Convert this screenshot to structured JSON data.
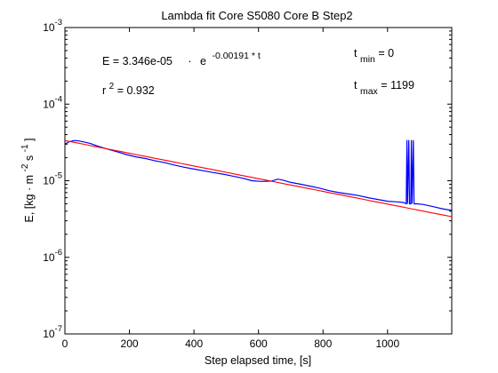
{
  "chart_data": {
    "type": "line",
    "title": "Lambda fit  Core S5080 Core B  Step2",
    "xlabel": "Step elapsed time, [s]",
    "ylabel": {
      "prefix": "E, [kg · m",
      "exp1": "-2",
      "middle": " s",
      "exp2": "-1",
      "suffix": "]"
    },
    "xlim": [
      0,
      1199
    ],
    "ylim": [
      1e-07,
      0.001
    ],
    "yscale": "log",
    "grid": false,
    "x_ticks": [
      0,
      200,
      400,
      600,
      800,
      1000
    ],
    "x_tick_labels": [
      "0",
      "200",
      "400",
      "600",
      "800",
      "1000"
    ],
    "y_ticks": [
      1e-07,
      1e-06,
      1e-05,
      0.0001,
      0.001
    ],
    "y_tick_labels": [
      {
        "base": "10",
        "exp": "-7"
      },
      {
        "base": "10",
        "exp": "-6"
      },
      {
        "base": "10",
        "exp": "-5"
      },
      {
        "base": "10",
        "exp": "-4"
      },
      {
        "base": "10",
        "exp": "-3"
      }
    ],
    "annotations": {
      "equation": {
        "lhs": "E = 3.346e-05",
        "dot": "·",
        "base": "e",
        "exp": "-0.00191 * t"
      },
      "r2": {
        "label": "r",
        "sup": "2",
        "value": " = 0.932"
      },
      "tmin": {
        "label": "t",
        "sub": "min",
        "value": " = 0"
      },
      "tmax": {
        "label": "t",
        "sub": "max",
        "value": " = 1199"
      }
    },
    "series": [
      {
        "color": "#0000ff",
        "points": [
          [
            0,
            3e-05
          ],
          [
            15,
            3.25e-05
          ],
          [
            30,
            3.35e-05
          ],
          [
            45,
            3.3e-05
          ],
          [
            60,
            3.2e-05
          ],
          [
            80,
            3.05e-05
          ],
          [
            100,
            2.85e-05
          ],
          [
            130,
            2.6e-05
          ],
          [
            160,
            2.4e-05
          ],
          [
            190,
            2.2e-05
          ],
          [
            220,
            2.05e-05
          ],
          [
            250,
            1.95e-05
          ],
          [
            280,
            1.82e-05
          ],
          [
            310,
            1.72e-05
          ],
          [
            340,
            1.6e-05
          ],
          [
            370,
            1.5e-05
          ],
          [
            400,
            1.42e-05
          ],
          [
            430,
            1.35e-05
          ],
          [
            460,
            1.28e-05
          ],
          [
            490,
            1.22e-05
          ],
          [
            520,
            1.15e-05
          ],
          [
            550,
            1.08e-05
          ],
          [
            580,
            1e-05
          ],
          [
            610,
            9.8e-06
          ],
          [
            640,
            9.9e-06
          ],
          [
            660,
            1.05e-05
          ],
          [
            675,
            1.02e-05
          ],
          [
            700,
            9.5e-06
          ],
          [
            730,
            9e-06
          ],
          [
            760,
            8.5e-06
          ],
          [
            790,
            8e-06
          ],
          [
            820,
            7.4e-06
          ],
          [
            850,
            7e-06
          ],
          [
            880,
            6.7e-06
          ],
          [
            910,
            6.4e-06
          ],
          [
            940,
            6e-06
          ],
          [
            970,
            5.7e-06
          ],
          [
            1000,
            5.4e-06
          ],
          [
            1030,
            5.3e-06
          ],
          [
            1050,
            5.2e-06
          ],
          [
            1058,
            5e-06
          ],
          [
            1060,
            3.4e-05
          ],
          [
            1062,
            5e-06
          ],
          [
            1066,
            3.4e-05
          ],
          [
            1068,
            5e-06
          ],
          [
            1072,
            5e-06
          ],
          [
            1074,
            3.4e-05
          ],
          [
            1076,
            5e-06
          ],
          [
            1080,
            3.4e-05
          ],
          [
            1082,
            5e-06
          ],
          [
            1090,
            5e-06
          ],
          [
            1110,
            4.9e-06
          ],
          [
            1140,
            4.6e-06
          ],
          [
            1170,
            4.3e-06
          ],
          [
            1199,
            4.1e-06
          ]
        ]
      },
      {
        "color": "#ff0000",
        "fit": {
          "a": 3.346e-05,
          "b": -0.00191
        },
        "x_range": [
          0,
          1199
        ]
      }
    ]
  }
}
